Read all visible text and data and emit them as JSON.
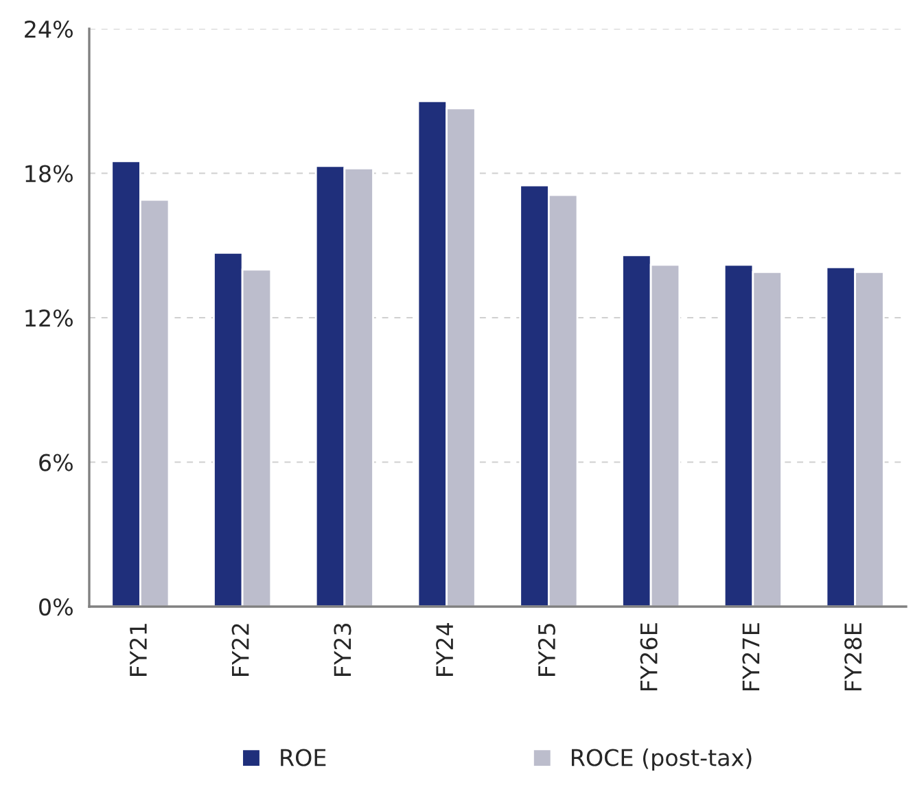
{
  "chart_data": {
    "type": "bar",
    "categories": [
      "FY21",
      "FY22",
      "FY23",
      "FY24",
      "FY25",
      "FY26E",
      "FY27E",
      "FY28E"
    ],
    "series": [
      {
        "name": "ROE",
        "color": "#1f2f7b",
        "values": [
          18.5,
          14.7,
          18.3,
          21.0,
          17.5,
          14.6,
          14.2,
          14.1
        ]
      },
      {
        "name": "ROCE (post-tax)",
        "color": "#bcbdcc",
        "values": [
          16.9,
          14.0,
          18.2,
          20.7,
          17.1,
          14.2,
          13.9,
          13.9
        ]
      }
    ],
    "ylim": [
      0,
      24
    ],
    "yticks": [
      {
        "value": 0,
        "label": "0%"
      },
      {
        "value": 6,
        "label": "6%"
      },
      {
        "value": 12,
        "label": "12%"
      },
      {
        "value": 18,
        "label": "18%"
      },
      {
        "value": 24,
        "label": "24%"
      }
    ],
    "grid": "y",
    "legend": "bottom"
  }
}
